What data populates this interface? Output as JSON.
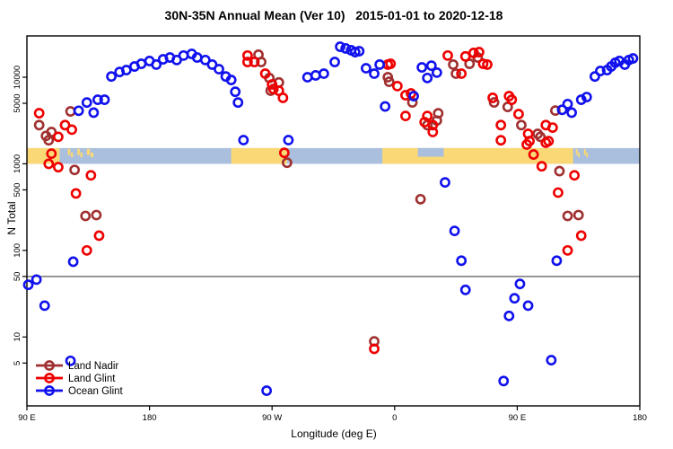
{
  "title": "30N-35N Annual Mean (Ver 10)   2015-01-01 to 2020-12-18",
  "chart_data": {
    "type": "scatter",
    "title": "30N-35N Annual Mean (Ver 10)   2015-01-01 to 2020-12-18",
    "xlabel": "Longitude (deg E)",
    "ylabel": "N Total",
    "x_axis": {
      "range_deg": [
        90,
        540
      ],
      "ticks_deg": [
        90,
        180,
        270,
        360,
        450,
        540
      ],
      "tick_labels": [
        "90 E",
        "180",
        "90 W",
        "0",
        "90 E",
        "180"
      ]
    },
    "y_axis": {
      "scale": "log",
      "range": [
        1.6,
        30000
      ],
      "ticks": [
        10000,
        5000,
        1000,
        500,
        100,
        50,
        10,
        5
      ],
      "tick_labels": [
        "10000",
        "5000",
        "1000",
        "500",
        "100",
        "50",
        "10",
        "5"
      ]
    },
    "reference_line": {
      "value": 50,
      "color": "#5a5a5a"
    },
    "map_strip": {
      "description": "30N-35N latitude band world map drawn across plot",
      "n_top": 1520,
      "n_bottom": 1000,
      "ocean_color": "#a9bfdd",
      "land_color": "#fbd876",
      "land_segments_deg": [
        [
          90,
          114
        ],
        [
          240,
          281
        ],
        [
          351,
          491
        ]
      ],
      "island_specks_deg": [
        [
          120,
          124
        ],
        [
          127,
          131
        ],
        [
          134,
          139
        ],
        [
          493,
          496
        ],
        [
          499,
          502
        ]
      ],
      "sea_notches_deg": [
        [
          377,
          396
        ]
      ]
    },
    "legend": {
      "position": "bottom-left",
      "items": [
        "Land Nadir",
        "Land Glint",
        "Ocean Glint"
      ]
    },
    "series": [
      {
        "name": "Land Nadir",
        "color": "#a03030",
        "points": [
          [
            99,
            2800
          ],
          [
            104,
            2100
          ],
          [
            108,
            2330
          ],
          [
            106,
            1870
          ],
          [
            122,
            4030
          ],
          [
            125,
            850
          ],
          [
            133,
            250
          ],
          [
            141,
            256
          ],
          [
            260,
            18200
          ],
          [
            262,
            15000
          ],
          [
            268,
            9800
          ],
          [
            275,
            8700
          ],
          [
            269,
            7000
          ],
          [
            281,
            1030
          ],
          [
            355,
            10000
          ],
          [
            356,
            8870
          ],
          [
            373,
            5120
          ],
          [
            384,
            2800
          ],
          [
            392,
            3830
          ],
          [
            391,
            3160
          ],
          [
            379,
            390
          ],
          [
            403,
            14000
          ],
          [
            405,
            11000
          ],
          [
            415,
            14300
          ],
          [
            421,
            16900
          ],
          [
            433,
            5120
          ],
          [
            443,
            4540
          ],
          [
            453,
            2800
          ],
          [
            465,
            2220
          ],
          [
            467,
            2050
          ],
          [
            478,
            4120
          ],
          [
            481,
            824
          ],
          [
            487,
            250
          ],
          [
            495,
            256
          ],
          [
            345,
            8.9
          ]
        ]
      },
      {
        "name": "Land Glint",
        "color": "#ee0000",
        "points": [
          [
            99,
            3840
          ],
          [
            113,
            2050
          ],
          [
            118,
            2800
          ],
          [
            123,
            2480
          ],
          [
            108,
            1310
          ],
          [
            106,
            1000
          ],
          [
            113,
            915
          ],
          [
            137,
            736
          ],
          [
            126,
            455
          ],
          [
            143,
            148
          ],
          [
            134,
            100
          ],
          [
            252,
            17800
          ],
          [
            252,
            15000
          ],
          [
            257,
            15000
          ],
          [
            265,
            11000
          ],
          [
            270,
            8260
          ],
          [
            271,
            7310
          ],
          [
            275,
            6980
          ],
          [
            278,
            5780
          ],
          [
            279,
            1340
          ],
          [
            355,
            14000
          ],
          [
            357,
            14300
          ],
          [
            362,
            7900
          ],
          [
            368,
            6200
          ],
          [
            372,
            6500
          ],
          [
            368,
            3570
          ],
          [
            384,
            3570
          ],
          [
            382,
            3030
          ],
          [
            388,
            2800
          ],
          [
            388,
            2330
          ],
          [
            399,
            17800
          ],
          [
            412,
            17400
          ],
          [
            418,
            19100
          ],
          [
            422,
            19500
          ],
          [
            425,
            14300
          ],
          [
            428,
            14000
          ],
          [
            409,
            11000
          ],
          [
            432,
            5780
          ],
          [
            444,
            6050
          ],
          [
            446,
            5500
          ],
          [
            451,
            3750
          ],
          [
            458,
            2220
          ],
          [
            459,
            1830
          ],
          [
            438,
            2800
          ],
          [
            438,
            1870
          ],
          [
            457,
            1670
          ],
          [
            462,
            1280
          ],
          [
            471,
            1750
          ],
          [
            471,
            2800
          ],
          [
            476,
            2620
          ],
          [
            473,
            1830
          ],
          [
            468,
            937
          ],
          [
            492,
            736
          ],
          [
            480,
            465
          ],
          [
            497,
            148
          ],
          [
            487,
            100
          ],
          [
            345,
            7.3
          ]
        ]
      },
      {
        "name": "Ocean Glint",
        "color": "#1111ee",
        "points": [
          [
            152,
            10200
          ],
          [
            158,
            11500
          ],
          [
            163,
            12100
          ],
          [
            169,
            13300
          ],
          [
            174,
            14300
          ],
          [
            180,
            15400
          ],
          [
            185,
            14000
          ],
          [
            190,
            16100
          ],
          [
            195,
            16900
          ],
          [
            200,
            15800
          ],
          [
            205,
            17800
          ],
          [
            211,
            18600
          ],
          [
            215,
            16900
          ],
          [
            221,
            15800
          ],
          [
            226,
            14000
          ],
          [
            231,
            12400
          ],
          [
            236,
            10200
          ],
          [
            240,
            9300
          ],
          [
            243,
            6800
          ],
          [
            245,
            5100
          ],
          [
            249,
            1880
          ],
          [
            282,
            1880
          ],
          [
            296,
            10000
          ],
          [
            302,
            10500
          ],
          [
            308,
            11000
          ],
          [
            316,
            15000
          ],
          [
            320,
            22500
          ],
          [
            324,
            21500
          ],
          [
            328,
            20500
          ],
          [
            331,
            19500
          ],
          [
            334,
            20000
          ],
          [
            339,
            12700
          ],
          [
            345,
            11000
          ],
          [
            349,
            14000
          ],
          [
            353,
            4600
          ],
          [
            374,
            6050
          ],
          [
            380,
            13000
          ],
          [
            384,
            9800
          ],
          [
            387,
            13600
          ],
          [
            391,
            11300
          ],
          [
            397,
            610
          ],
          [
            404,
            168
          ],
          [
            409,
            76
          ],
          [
            412,
            35
          ],
          [
            483,
            4200
          ],
          [
            487,
            4900
          ],
          [
            490,
            3900
          ],
          [
            497,
            5500
          ],
          [
            501,
            5900
          ],
          [
            507,
            10200
          ],
          [
            511,
            11800
          ],
          [
            516,
            12100
          ],
          [
            519,
            13300
          ],
          [
            522,
            14700
          ],
          [
            525,
            15400
          ],
          [
            529,
            14000
          ],
          [
            532,
            15800
          ],
          [
            535,
            16500
          ],
          [
            128,
            4100
          ],
          [
            134,
            5100
          ],
          [
            139,
            3900
          ],
          [
            142,
            5500
          ],
          [
            147,
            5500
          ],
          [
            124,
            74
          ],
          [
            91,
            40
          ],
          [
            97,
            46
          ],
          [
            103,
            23
          ],
          [
            122,
            5.3
          ],
          [
            266,
            2.4
          ],
          [
            452,
            41
          ],
          [
            448,
            28
          ],
          [
            458,
            23
          ],
          [
            444,
            17.5
          ],
          [
            475,
            5.4
          ],
          [
            440,
            3.1
          ],
          [
            479,
            76
          ]
        ]
      }
    ]
  }
}
